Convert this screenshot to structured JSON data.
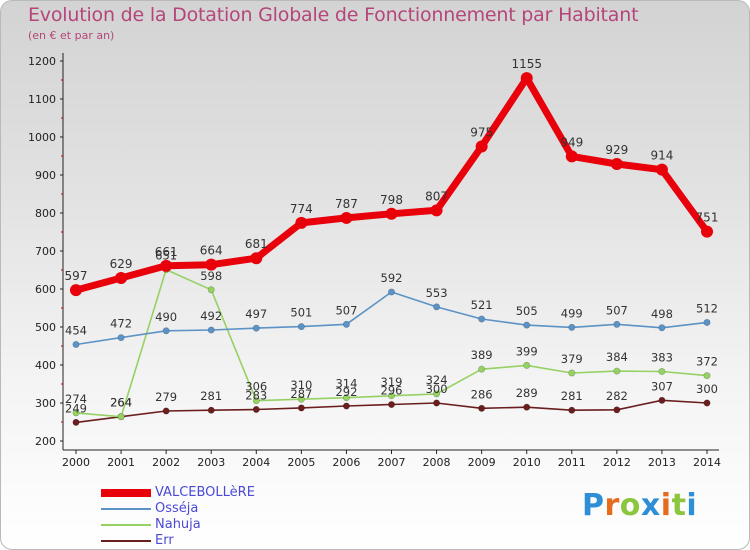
{
  "title": "Evolution de la Dotation Globale de Fonctionnement par Habitant",
  "subtitle": "(en € et par an)",
  "brand": {
    "text": "Proxiti",
    "letters": [
      "P",
      "r",
      "o",
      "x",
      "i",
      "t",
      "i"
    ],
    "colors": [
      "#2f8fd6",
      "#e56b1f",
      "#8cc63f",
      "#2f8fd6",
      "#e56b1f",
      "#8cc63f",
      "#2f8fd6"
    ]
  },
  "chart_data": {
    "type": "line",
    "title": "Evolution de la Dotation Globale de Fonctionnement par Habitant",
    "subtitle": "(en € et par an)",
    "x": [
      "2000",
      "2001",
      "2002",
      "2003",
      "2004",
      "2005",
      "2006",
      "2007",
      "2008",
      "2009",
      "2010",
      "2011",
      "2012",
      "2013",
      "2014"
    ],
    "ylim": [
      200,
      1200
    ],
    "yticks": [
      200,
      300,
      400,
      500,
      600,
      700,
      800,
      900,
      1000,
      1100,
      1200
    ],
    "grid": false,
    "legend_position": "bottom-left",
    "series": [
      {
        "name": "VALCEBOLLèRE",
        "color": "#e8000b",
        "values": [
          597,
          629,
          661,
          664,
          681,
          774,
          787,
          798,
          807,
          975,
          1155,
          949,
          929,
          914,
          751
        ]
      },
      {
        "name": "Osséja",
        "color": "#5b93c6",
        "values": [
          454,
          472,
          490,
          492,
          497,
          501,
          507,
          592,
          553,
          521,
          505,
          499,
          507,
          498,
          512
        ]
      },
      {
        "name": "Nahuja",
        "color": "#96d163",
        "values": [
          274,
          264,
          651,
          598,
          306,
          310,
          314,
          319,
          324,
          389,
          399,
          379,
          384,
          383,
          372
        ]
      },
      {
        "name": "Err",
        "color": "#6b1e1e",
        "values": [
          249,
          264,
          279,
          281,
          283,
          287,
          292,
          296,
          300,
          286,
          289,
          281,
          282,
          307,
          300
        ]
      }
    ]
  }
}
